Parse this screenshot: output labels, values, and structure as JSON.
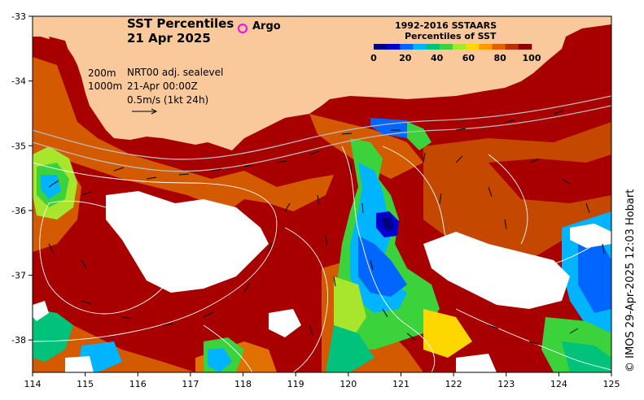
{
  "title": {
    "line1": "SST Percentiles",
    "line2": "21 Apr 2025"
  },
  "argo_label": "Argo",
  "colorbar": {
    "title_line1": "1992-2016 SSTAARS",
    "title_line2": "Percentiles of SST",
    "colors": [
      "#00007a",
      "#0000d0",
      "#0066ff",
      "#00b4ff",
      "#00c27a",
      "#3bd23b",
      "#a8e62e",
      "#ffd700",
      "#ff9900",
      "#e06000",
      "#b83200",
      "#8b0000"
    ],
    "ticks": [
      "0",
      "20",
      "40",
      "60",
      "80",
      "100"
    ]
  },
  "annotations": {
    "depth_200": "200m",
    "depth_1000": "1000m",
    "sealevel": "NRT00 adj. sealevel",
    "datetime": "21-Apr 00:00Z",
    "velocity_scale": "0.5m/s (1kt 24h)"
  },
  "axes": {
    "x_ticks": [
      "114",
      "115",
      "116",
      "117",
      "118",
      "119",
      "120",
      "121",
      "122",
      "123",
      "124",
      "125"
    ],
    "y_ticks": [
      "-33",
      "-34",
      "-35",
      "-36",
      "-37",
      "-38"
    ],
    "lon_range": [
      114,
      125
    ],
    "lat_range": [
      -38.5,
      -33
    ]
  },
  "credit": "© IMOS 29-Apr-2025 12:03 Hobart",
  "colors": {
    "land": "#f9c89b",
    "warm": "#a80000",
    "mid": "#d45a00",
    "cool": "#00aaff",
    "missing": "#ffffff"
  }
}
